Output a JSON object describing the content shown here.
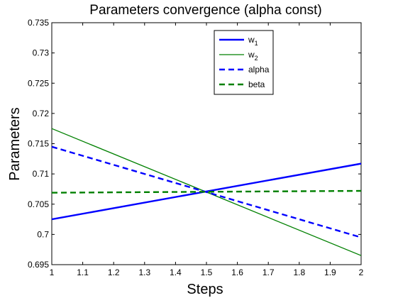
{
  "chart_data": {
    "type": "line",
    "title": "Parameters convergence (alpha const)",
    "xlabel": "Steps",
    "ylabel": "Parameters",
    "xlim": [
      1,
      2
    ],
    "ylim": [
      0.695,
      0.735
    ],
    "x_ticks": [
      1,
      1.1,
      1.2,
      1.3,
      1.4,
      1.5,
      1.6,
      1.7,
      1.8,
      1.9,
      2
    ],
    "x_tick_labels": [
      "1",
      "1.1",
      "1.2",
      "1.3",
      "1.4",
      "1.5",
      "1.6",
      "1.7",
      "1.8",
      "1.9",
      "2"
    ],
    "y_ticks": [
      0.695,
      0.7,
      0.705,
      0.71,
      0.715,
      0.72,
      0.725,
      0.73,
      0.735
    ],
    "y_tick_labels": [
      "0.695",
      "0.7",
      "0.705",
      "0.71",
      "0.715",
      "0.72",
      "0.725",
      "0.73",
      "0.735"
    ],
    "grid": false,
    "legend_position": "top-center",
    "series": [
      {
        "name": "w",
        "subscript": "1",
        "color": "#0000ff",
        "style": "solid",
        "width": 2.4,
        "x": [
          1,
          2
        ],
        "y": [
          0.7025,
          0.7117
        ]
      },
      {
        "name": "w",
        "subscript": "2",
        "color": "#008000",
        "style": "solid",
        "width": 1.3,
        "x": [
          1,
          2
        ],
        "y": [
          0.7175,
          0.6965
        ]
      },
      {
        "name": "alpha",
        "subscript": "",
        "color": "#0000ff",
        "style": "dashed",
        "width": 2.4,
        "x": [
          1,
          2
        ],
        "y": [
          0.7145,
          0.6995
        ]
      },
      {
        "name": "beta",
        "subscript": "",
        "color": "#008000",
        "style": "dashed",
        "width": 2.4,
        "x": [
          1,
          2
        ],
        "y": [
          0.7069,
          0.7072
        ]
      }
    ]
  }
}
